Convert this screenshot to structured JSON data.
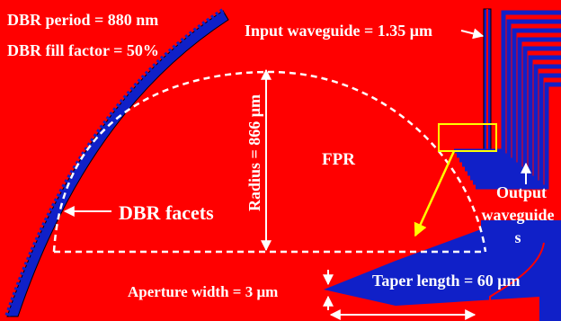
{
  "diagram": {
    "background_color": "#ff0000",
    "structure_color": "#1020c8",
    "annotation_color": "#ffffff",
    "highlight_color": "#ffff00",
    "labels": {
      "dbr_period": "DBR period = 880 nm",
      "dbr_fill_factor": "DBR fill factor = 50%",
      "input_waveguide": "Input waveguide = 1.35 μm",
      "radius": "Radius = 866 μm",
      "fpr": "FPR",
      "dbr_facets": "DBR facets",
      "output_waveguides": [
        "Output",
        "waveguide",
        "s"
      ],
      "taper_length": "Taper length = 60 μm",
      "aperture_width": "Aperture width = 3 μm"
    }
  }
}
